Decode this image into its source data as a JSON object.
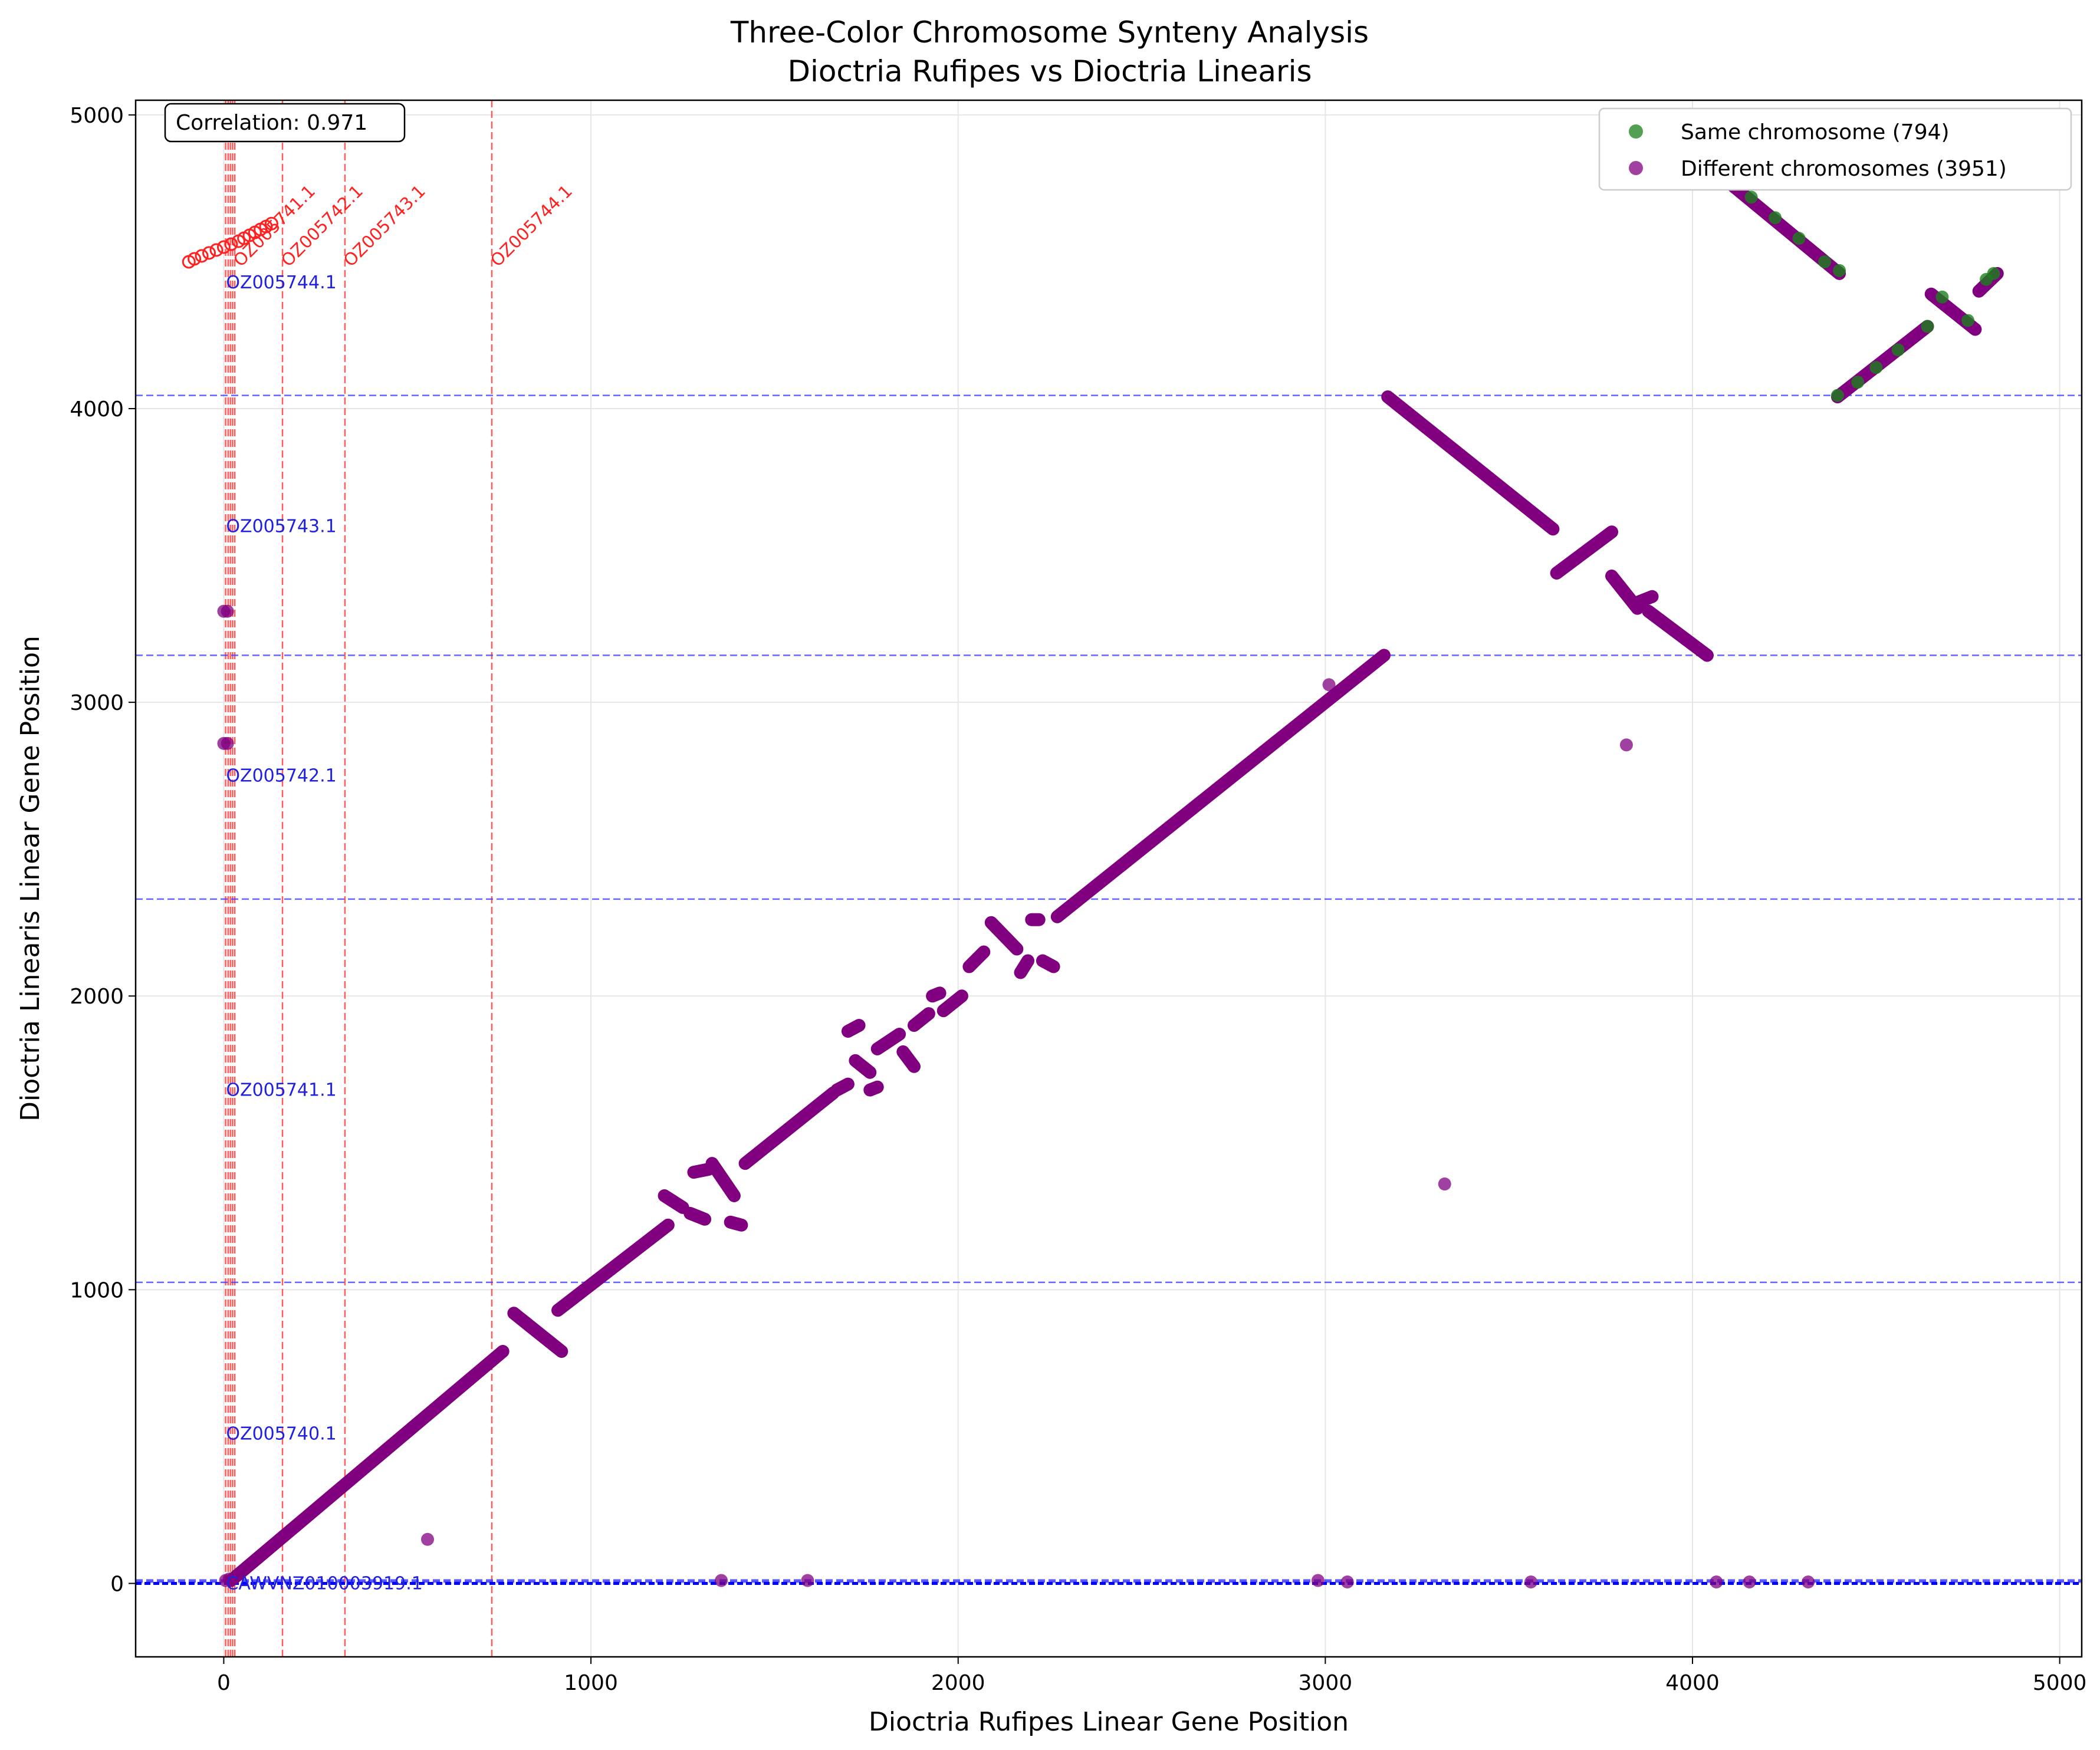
{
  "chart_data": {
    "type": "scatter",
    "title": "Three-Color Chromosome Synteny Analysis",
    "subtitle": "Dioctria Rufipes vs Dioctria Linearis",
    "xlabel": "Dioctria Rufipes Linear Gene Position",
    "ylabel": "Dioctria Linearis Linear Gene Position",
    "xlim": [
      -240,
      5060
    ],
    "ylim": [
      -250,
      5050
    ],
    "x_ticks": [
      0,
      1000,
      2000,
      3000,
      4000,
      5000
    ],
    "y_ticks": [
      0,
      1000,
      2000,
      3000,
      4000,
      5000
    ],
    "grid": true,
    "legend_position": "upper right",
    "annotation": "Correlation: 0.971",
    "colors": {
      "same": "#1a7f1a",
      "different": "#800080",
      "red_lines": "#ff4040",
      "blue_lines": "#4040ff"
    },
    "series": [
      {
        "name": "Same chromosome (794)",
        "color": "#1a7f1a",
        "points": [
          [
            4070,
            4800
          ],
          [
            4160,
            4720
          ],
          [
            4225,
            4650
          ],
          [
            4290,
            4580
          ],
          [
            4360,
            4500
          ],
          [
            4400,
            4470
          ],
          [
            4395,
            4045
          ],
          [
            4450,
            4090
          ],
          [
            4500,
            4140
          ],
          [
            4560,
            4200
          ],
          [
            4640,
            4280
          ],
          [
            4680,
            4380
          ],
          [
            4750,
            4300
          ],
          [
            4800,
            4440
          ],
          [
            4820,
            4460
          ]
        ]
      },
      {
        "name": "Different chromosomes (3951)",
        "color": "#800080",
        "segments": [
          [
            [
              20,
              10
            ],
            [
              760,
              790
            ]
          ],
          [
            [
              790,
              920
            ],
            [
              920,
              790
            ]
          ],
          [
            [
              910,
              930
            ],
            [
              1210,
              1220
            ]
          ],
          [
            [
              1200,
              1320
            ],
            [
              1250,
              1280
            ]
          ],
          [
            [
              1270,
              1260
            ],
            [
              1310,
              1240
            ]
          ],
          [
            [
              1280,
              1400
            ],
            [
              1320,
              1410
            ]
          ],
          [
            [
              1330,
              1430
            ],
            [
              1390,
              1320
            ]
          ],
          [
            [
              1380,
              1230
            ],
            [
              1410,
              1220
            ]
          ],
          [
            [
              1420,
              1430
            ],
            [
              1660,
              1670
            ]
          ],
          [
            [
              1670,
              1680
            ],
            [
              1700,
              1700
            ]
          ],
          [
            [
              1700,
              1880
            ],
            [
              1730,
              1900
            ]
          ],
          [
            [
              1720,
              1780
            ],
            [
              1760,
              1740
            ]
          ],
          [
            [
              1760,
              1680
            ],
            [
              1780,
              1690
            ]
          ],
          [
            [
              1780,
              1820
            ],
            [
              1840,
              1870
            ]
          ],
          [
            [
              1850,
              1810
            ],
            [
              1880,
              1760
            ]
          ],
          [
            [
              1880,
              1900
            ],
            [
              1920,
              1940
            ]
          ],
          [
            [
              1930,
              2000
            ],
            [
              1950,
              2010
            ]
          ],
          [
            [
              1960,
              1950
            ],
            [
              2010,
              2000
            ]
          ],
          [
            [
              2030,
              2100
            ],
            [
              2070,
              2150
            ]
          ],
          [
            [
              2090,
              2250
            ],
            [
              2160,
              2160
            ]
          ],
          [
            [
              2170,
              2080
            ],
            [
              2190,
              2120
            ]
          ],
          [
            [
              2200,
              2260
            ],
            [
              2220,
              2260
            ]
          ],
          [
            [
              2230,
              2120
            ],
            [
              2260,
              2100
            ]
          ],
          [
            [
              2270,
              2270
            ],
            [
              3160,
              3160
            ]
          ],
          [
            [
              3170,
              4040
            ],
            [
              3620,
              3590
            ]
          ],
          [
            [
              3630,
              3440
            ],
            [
              3780,
              3580
            ]
          ],
          [
            [
              3780,
              3430
            ],
            [
              3850,
              3320
            ]
          ],
          [
            [
              3850,
              3340
            ],
            [
              3890,
              3360
            ]
          ],
          [
            [
              3880,
              3310
            ],
            [
              4040,
              3160
            ]
          ],
          [
            [
              4070,
              4800
            ],
            [
              4400,
              4460
            ]
          ],
          [
            [
              4395,
              4040
            ],
            [
              4640,
              4280
            ]
          ],
          [
            [
              4650,
              4390
            ],
            [
              4770,
              4270
            ]
          ],
          [
            [
              4780,
              4400
            ],
            [
              4830,
              4460
            ]
          ]
        ],
        "points": [
          [
            0,
            3310
          ],
          [
            10,
            3310
          ],
          [
            0,
            2860
          ],
          [
            10,
            2860
          ],
          [
            5,
            10
          ],
          [
            15,
            15
          ],
          [
            555,
            150
          ],
          [
            1355,
            10
          ],
          [
            1590,
            10
          ],
          [
            2980,
            10
          ],
          [
            3060,
            5
          ],
          [
            3010,
            3060
          ],
          [
            3325,
            1360
          ],
          [
            3560,
            5
          ],
          [
            3820,
            2855
          ],
          [
            4065,
            5
          ],
          [
            4155,
            5
          ],
          [
            4315,
            5
          ]
        ]
      }
    ],
    "red_vertical_lines_x": [
      5,
      12,
      18,
      24,
      30,
      160,
      330,
      730
    ],
    "blue_horizontal_lines_y": [
      5,
      8,
      12,
      1025,
      2330,
      3160,
      4045
    ],
    "red_labels": [
      {
        "text": "OZ005741.1",
        "x": 30
      },
      {
        "text": "OZ005742.1",
        "x": 160
      },
      {
        "text": "OZ005743.1",
        "x": 330
      },
      {
        "text": "OZ005744.1",
        "x": 730
      }
    ],
    "blue_labels": [
      {
        "text": "OZ005740.1",
        "y": 510
      },
      {
        "text": "OZ005741.1",
        "y": 1680
      },
      {
        "text": "OZ005742.1",
        "y": 2750
      },
      {
        "text": "OZ005743.1",
        "y": 3600
      },
      {
        "text": "OZ005744.1",
        "y": 4430
      },
      {
        "text": "CAWVNZ010003919.1",
        "y": 0
      }
    ],
    "red_small_circles_x": [
      -95,
      -80,
      -60,
      -40,
      -20,
      0,
      20,
      40,
      55,
      70,
      85,
      100,
      115,
      130
    ]
  }
}
